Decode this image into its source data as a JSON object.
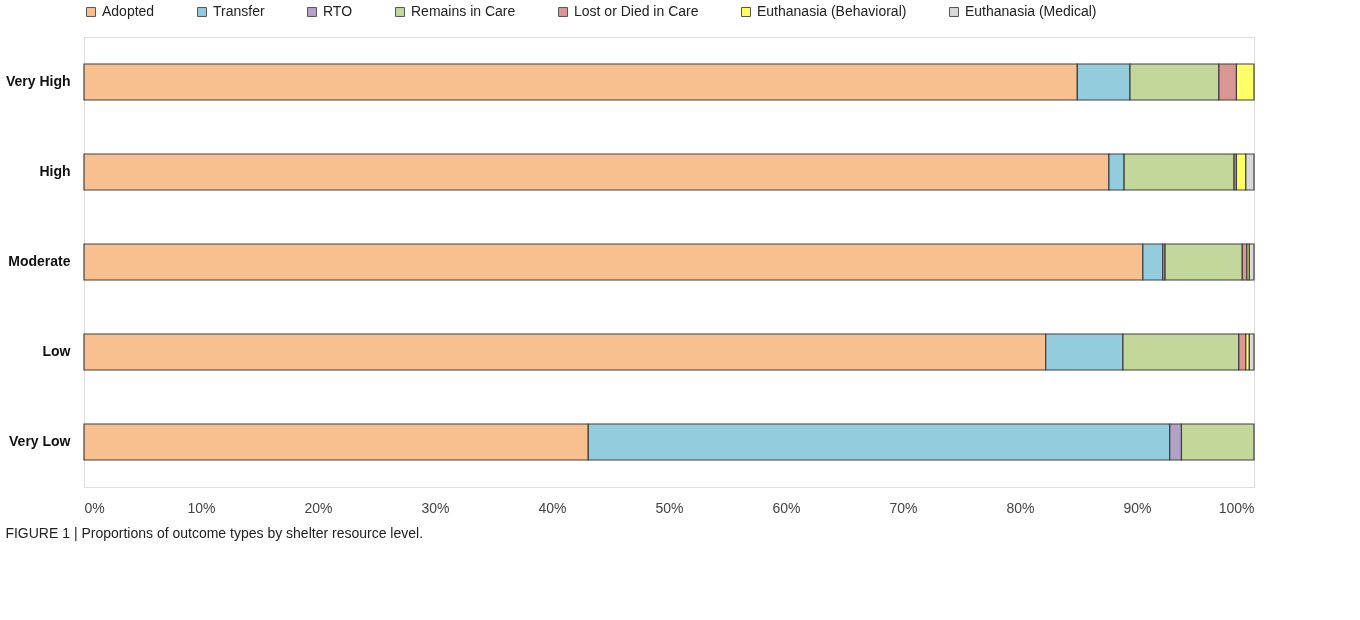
{
  "chart_data": {
    "type": "bar",
    "orientation": "horizontal",
    "stacked": true,
    "categories": [
      "Very High",
      "High",
      "Moderate",
      "Low",
      "Very Low"
    ],
    "series": [
      {
        "name": "Adopted",
        "color": "#f9c08f",
        "values": [
          84.9,
          87.6,
          90.5,
          82.2,
          43.1
        ]
      },
      {
        "name": "Transfer",
        "color": "#93ccdd",
        "values": [
          4.5,
          1.3,
          1.7,
          6.6,
          49.7
        ]
      },
      {
        "name": "RTO",
        "color": "#b3a2c7",
        "values": [
          null,
          null,
          0.2,
          null,
          1.0
        ]
      },
      {
        "name": "Remains in Care",
        "color": "#c4d79b",
        "values": [
          7.6,
          9.4,
          6.6,
          9.9,
          6.2
        ]
      },
      {
        "name": "Lost or Died in Care",
        "color": "#d99694",
        "values": [
          1.5,
          0.2,
          0.4,
          0.6,
          null
        ]
      },
      {
        "name": "Euthanasia (Behavioral)",
        "color": "#ffff66",
        "values": [
          1.5,
          0.8,
          0.2,
          0.3,
          null
        ]
      },
      {
        "name": "Euthanasia (Medical)",
        "color": "#d9d9d9",
        "values": [
          null,
          0.7,
          0.4,
          0.4,
          null
        ]
      }
    ],
    "xlim": [
      0,
      100
    ],
    "xticks": [
      {
        "value": 0,
        "label": "0%"
      },
      {
        "value": 10,
        "label": "10%"
      },
      {
        "value": 20,
        "label": "20%"
      },
      {
        "value": 30,
        "label": "30%"
      },
      {
        "value": 40,
        "label": "40%"
      },
      {
        "value": 50,
        "label": "50%"
      },
      {
        "value": 60,
        "label": "60%"
      },
      {
        "value": 70,
        "label": "70%"
      },
      {
        "value": 80,
        "label": "80%"
      },
      {
        "value": 90,
        "label": "90%"
      },
      {
        "value": 100,
        "label": "100%"
      }
    ],
    "legend": "top",
    "grid": false,
    "annotations": [
      "FIGURE 1 | Proportions of outcome types by shelter resource level."
    ]
  }
}
